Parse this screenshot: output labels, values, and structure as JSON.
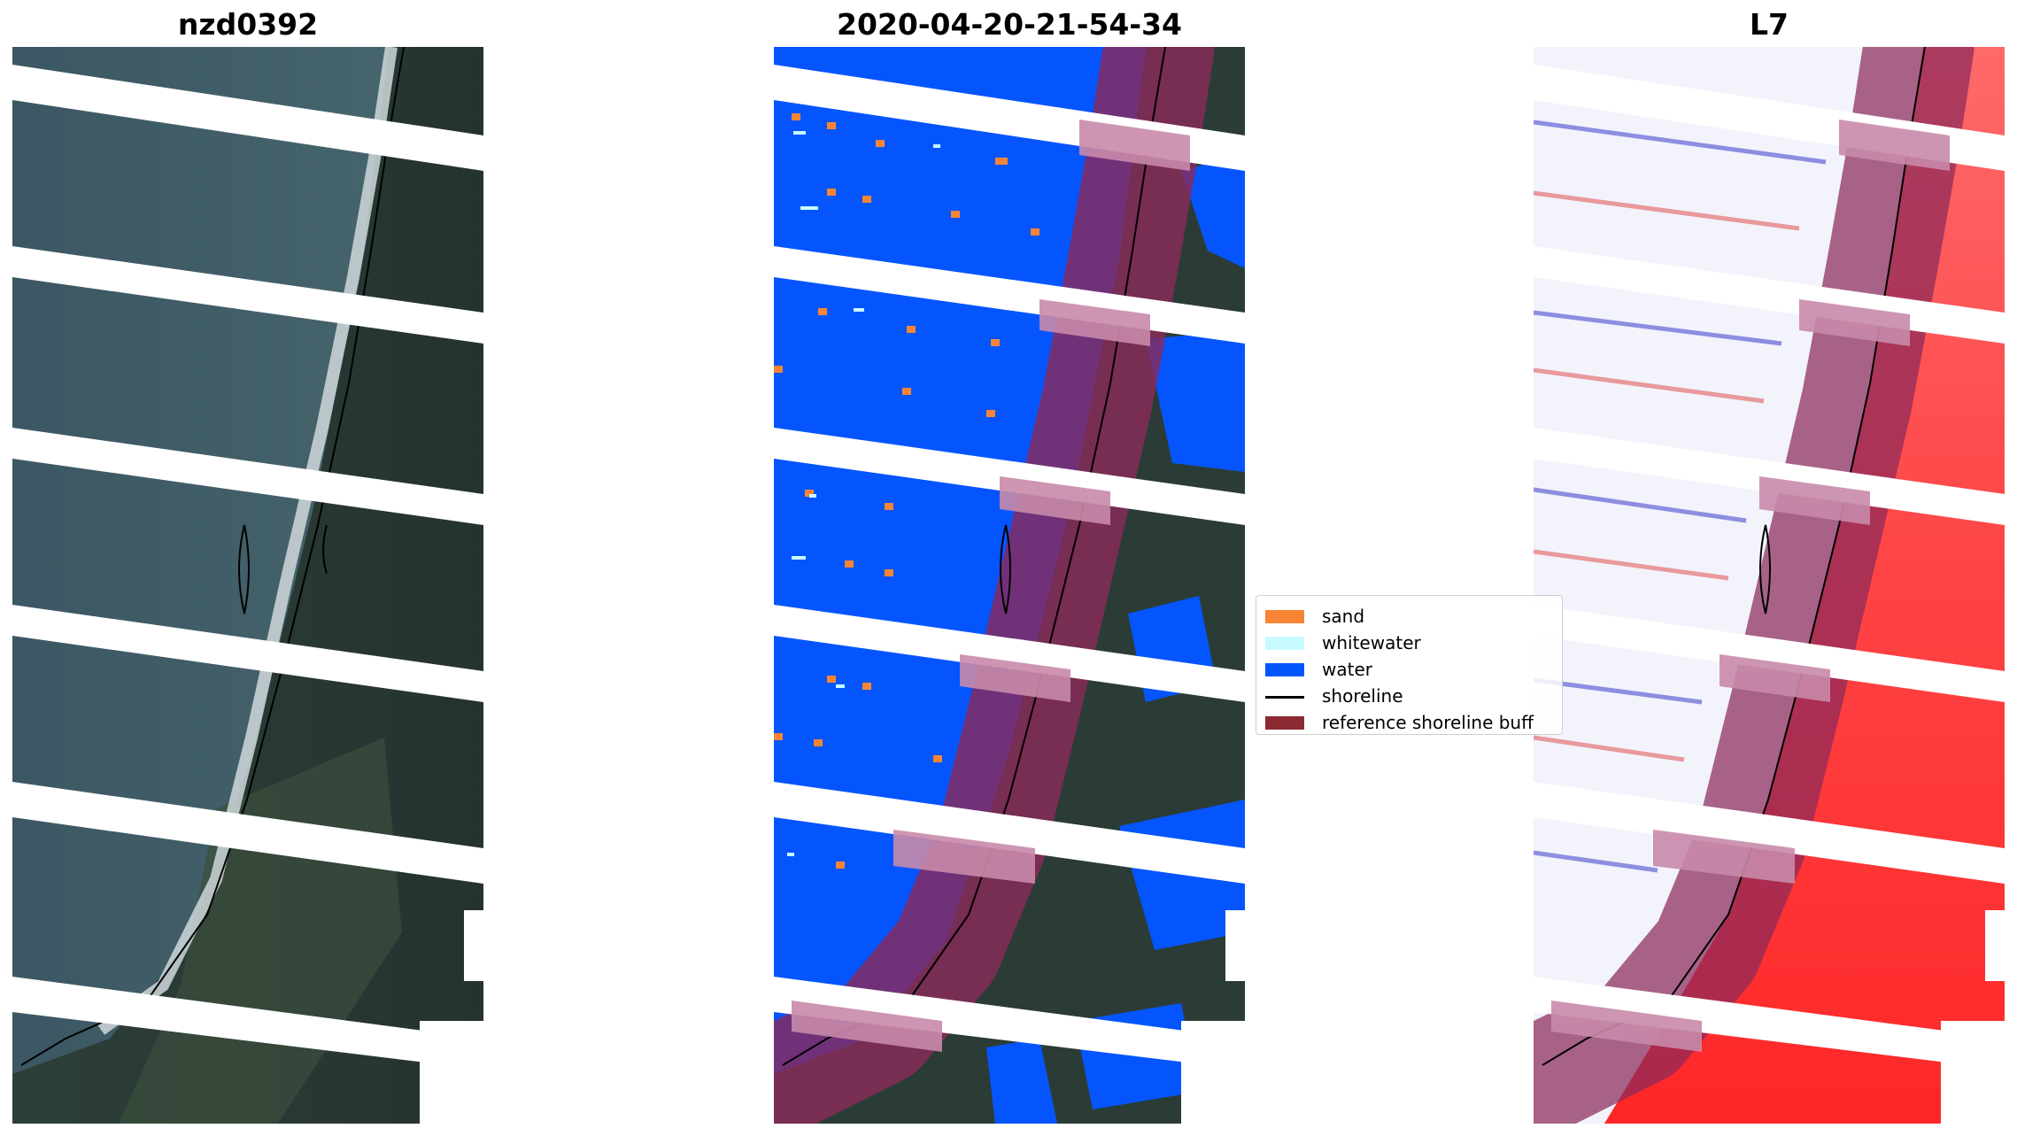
{
  "panels": [
    {
      "title": "nzd0392"
    },
    {
      "title": "2020-04-20-21-54-34"
    },
    {
      "title": "L7"
    }
  ],
  "legend": {
    "items": [
      {
        "label": "sand",
        "color": "#f78535",
        "kind": "patch"
      },
      {
        "label": "whitewater",
        "color": "#c8fbff",
        "kind": "patch"
      },
      {
        "label": "water",
        "color": "#0555ff",
        "kind": "patch"
      },
      {
        "label": "shoreline",
        "color": "#000000",
        "kind": "line"
      },
      {
        "label": "reference shoreline buff",
        "color": "#8c2a32",
        "kind": "patch"
      }
    ]
  },
  "colors": {
    "land_dark": "#2a3a34",
    "land_mid": "#34463c",
    "sea_rgb": "#3a5560",
    "surf": "#d9e2e4",
    "water_class": "#0555ff",
    "buffer": "#8a2a5a",
    "buffer_light": "#c88aaa",
    "mndwi_red": "#ff1a1a",
    "mndwi_white": "#f3f3fb"
  }
}
